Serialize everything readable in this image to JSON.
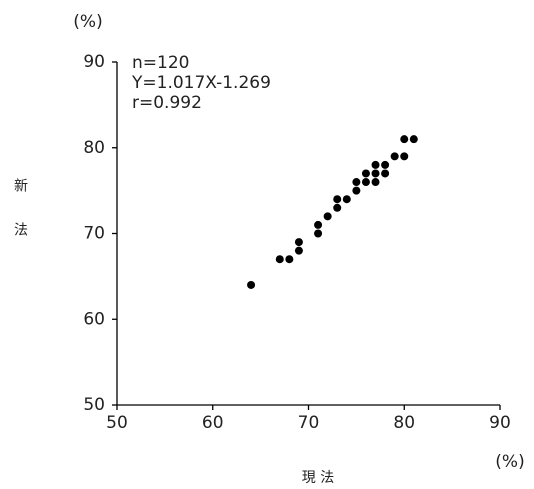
{
  "chart_data": {
    "type": "scatter",
    "y_unit": "(%)",
    "x_unit": "(%)",
    "x_label": "現 法",
    "y_label": "新法",
    "annotations": [
      "n=120",
      "Y=1.017X-1.269",
      "r=0.992"
    ],
    "color": "#000000",
    "x": [
      64,
      67,
      68,
      69,
      69,
      71,
      71,
      72,
      73,
      73,
      74,
      75,
      75,
      76,
      76,
      77,
      77,
      77,
      78,
      78,
      79,
      80,
      80,
      81
    ],
    "values": [
      64,
      67,
      67,
      68,
      69,
      70,
      71,
      72,
      73,
      74,
      74,
      75,
      76,
      76,
      77,
      76,
      77,
      78,
      77,
      78,
      79,
      79,
      81,
      81
    ],
    "xlim": [
      50,
      90
    ],
    "ylim": [
      50,
      90
    ],
    "xticks": [
      50,
      60,
      70,
      80,
      90
    ],
    "yticks": [
      50,
      60,
      70,
      80,
      90
    ]
  }
}
